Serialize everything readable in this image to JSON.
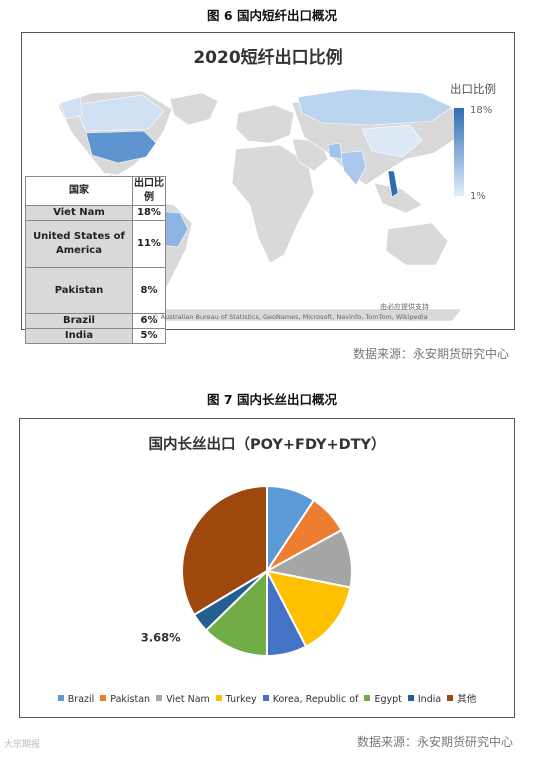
{
  "figure6": {
    "caption": "图 6  国内短纤出口概况",
    "source": "数据来源：永安期货研究中心"
  },
  "figure7": {
    "caption": "图 7  国内长丝出口概况",
    "source": "数据来源：永安期货研究中心"
  },
  "watermark": "大宗期报",
  "chart_data": [
    {
      "type": "table",
      "title": "2020短纤出口比例",
      "columns": [
        "国家",
        "出口比例"
      ],
      "rows": [
        {
          "country": "Viet Nam",
          "value": "18%"
        },
        {
          "country": "United States of America",
          "value": "11%"
        },
        {
          "country": "Pakistan",
          "value": "8%"
        },
        {
          "country": "Brazil",
          "value": "6%"
        },
        {
          "country": "India",
          "value": "5%"
        }
      ],
      "legend": {
        "title": "出口比例",
        "max_label": "18%",
        "min_label": "1%",
        "max_color": "#2e6db4",
        "min_color": "#e3eefa"
      },
      "credit": "© Australian Bureau of Statistics, GeoNames, Microsoft, Navinfo, TomTom, Wikipedia",
      "provider": "由必应提供支持"
    },
    {
      "type": "pie",
      "title": "国内长丝出口（POY+FDY+DTY）",
      "categories": [
        "Brazil",
        "Pakistan",
        "Viet Nam",
        "Turkey",
        "Korea, Republic of",
        "Egypt",
        "India",
        "其他"
      ],
      "values": [
        9.3,
        7.7,
        11.1,
        14.3,
        7.6,
        12.7,
        3.68,
        33.6
      ],
      "colors": [
        "#5b9bd5",
        "#ed7d31",
        "#a5a5a5",
        "#ffc000",
        "#4472c4",
        "#70ad47",
        "#255e91",
        "#9e480e"
      ],
      "data_labels": [
        {
          "category": "India",
          "text": "3.68%"
        }
      ]
    }
  ]
}
